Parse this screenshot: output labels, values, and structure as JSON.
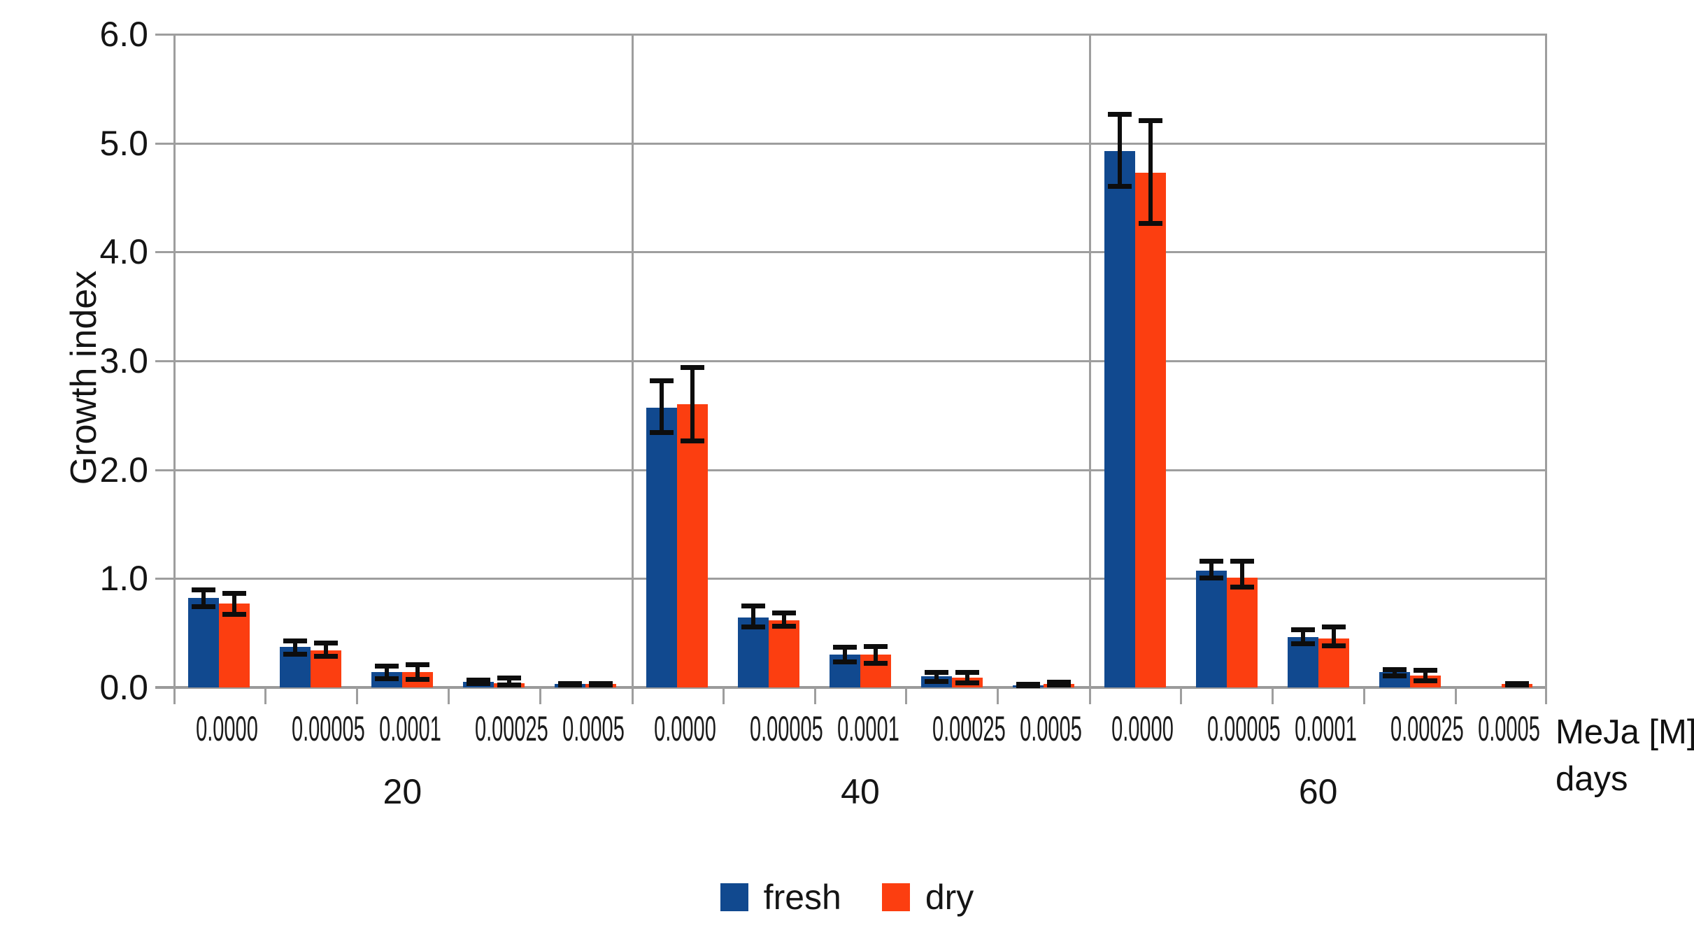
{
  "chart_data": {
    "type": "bar",
    "title": "",
    "ylabel": "Growth index",
    "xlabel": "MeJa [M]",
    "xlabel2": "days",
    "ylim": [
      0,
      6
    ],
    "yticks": [
      "0.0",
      "1.0",
      "2.0",
      "3.0",
      "4.0",
      "5.0",
      "6.0"
    ],
    "categories": [
      "0.0000",
      "0.00005",
      "0.0001",
      "0.00025",
      "0.0005"
    ],
    "groups": [
      "20",
      "40",
      "60"
    ],
    "grid": true,
    "legend_position": "bottom",
    "series": [
      {
        "name": "fresh",
        "color": "#11498f",
        "values": [
          [
            0.82,
            0.37,
            0.14,
            0.05,
            0.03
          ],
          [
            2.57,
            0.64,
            0.3,
            0.1,
            0.02
          ],
          [
            4.93,
            1.07,
            0.46,
            0.14,
            0.0
          ]
        ],
        "errors": [
          [
            [
              0.74,
              0.9
            ],
            [
              0.3,
              0.43
            ],
            [
              0.08,
              0.2
            ],
            [
              0.03,
              0.07
            ],
            [
              0.02,
              0.04
            ]
          ],
          [
            [
              2.34,
              2.82
            ],
            [
              0.55,
              0.75
            ],
            [
              0.23,
              0.37
            ],
            [
              0.05,
              0.14
            ],
            [
              0.01,
              0.03
            ]
          ],
          [
            [
              4.6,
              5.27
            ],
            [
              1.0,
              1.16
            ],
            [
              0.4,
              0.53
            ],
            [
              0.1,
              0.17
            ],
            [
              0.0,
              0.0
            ]
          ]
        ]
      },
      {
        "name": "dry",
        "color": "#fc3e10",
        "values": [
          [
            0.77,
            0.34,
            0.14,
            0.04,
            0.03
          ],
          [
            2.6,
            0.62,
            0.3,
            0.09,
            0.035
          ],
          [
            4.73,
            1.01,
            0.45,
            0.11,
            0.03
          ]
        ],
        "errors": [
          [
            [
              0.67,
              0.87
            ],
            [
              0.28,
              0.41
            ],
            [
              0.07,
              0.21
            ],
            [
              0.02,
              0.09
            ],
            [
              0.02,
              0.04
            ]
          ],
          [
            [
              2.26,
              2.94
            ],
            [
              0.56,
              0.69
            ],
            [
              0.22,
              0.38
            ],
            [
              0.04,
              0.14
            ],
            [
              0.02,
              0.05
            ]
          ],
          [
            [
              4.26,
              5.21
            ],
            [
              0.92,
              1.16
            ],
            [
              0.38,
              0.56
            ],
            [
              0.06,
              0.16
            ],
            [
              0.02,
              0.04
            ]
          ]
        ]
      }
    ],
    "colors": {
      "grid": "#9e9e9e",
      "error_bar": "#0d0d0d",
      "text": "#141414"
    }
  }
}
